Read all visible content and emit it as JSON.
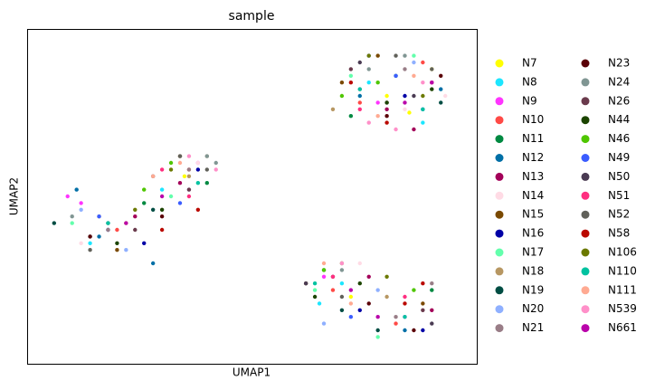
{
  "chart_data": {
    "type": "scatter",
    "title": "sample",
    "x_label": "UMAP1",
    "y_label": "UMAP2",
    "xlim": [
      0,
      100
    ],
    "ylim": [
      0,
      100
    ],
    "grid": false,
    "legend": "outside-right",
    "legend_columns": 2,
    "series": [
      {
        "name": "N7",
        "color": "#ffff00",
        "x": [
          80,
          90,
          22,
          72,
          85,
          35
        ],
        "values": [
          80,
          88,
          42,
          20,
          75,
          56
        ]
      },
      {
        "name": "N8",
        "color": "#1ce6ff",
        "x": [
          76,
          88,
          14,
          70,
          30,
          65
        ],
        "values": [
          84,
          72,
          36,
          24,
          52,
          18
        ]
      },
      {
        "name": "N9",
        "color": "#ff34ff",
        "x": [
          9,
          12,
          78,
          84,
          66,
          38
        ],
        "values": [
          50,
          48,
          78,
          14,
          26,
          60
        ]
      },
      {
        "name": "N10",
        "color": "#ff4a46",
        "x": [
          74,
          88,
          36,
          82,
          20,
          68
        ],
        "values": [
          78,
          90,
          58,
          12,
          40,
          22
        ]
      },
      {
        "name": "N11",
        "color": "#008941",
        "x": [
          82,
          72,
          26,
          90,
          66,
          40
        ],
        "values": [
          86,
          74,
          48,
          22,
          28,
          54
        ]
      },
      {
        "name": "N12",
        "color": "#006fa6",
        "x": [
          11,
          28,
          74,
          92,
          16,
          84
        ],
        "values": [
          52,
          30,
          80,
          82,
          38,
          10
        ]
      },
      {
        "name": "N13",
        "color": "#a30059",
        "x": [
          80,
          86,
          34,
          76,
          90,
          24
        ],
        "values": [
          76,
          70,
          54,
          26,
          16,
          44
        ]
      },
      {
        "name": "N14",
        "color": "#ffdbe5",
        "x": [
          76,
          84,
          38,
          74,
          12,
          93
        ],
        "values": [
          72,
          76,
          60,
          30,
          36,
          80
        ]
      },
      {
        "name": "N15",
        "color": "#7a4900",
        "x": [
          78,
          34,
          88,
          20,
          70,
          62
        ],
        "values": [
          92,
          62,
          18,
          34,
          84,
          24
        ]
      },
      {
        "name": "N16",
        "color": "#0000a6",
        "x": [
          84,
          18,
          74,
          38,
          88,
          26
        ],
        "values": [
          80,
          40,
          16,
          58,
          10,
          36
        ]
      },
      {
        "name": "N17",
        "color": "#63ffac",
        "x": [
          72,
          64,
          10,
          32,
          86,
          78
        ],
        "values": [
          86,
          22,
          42,
          50,
          92,
          8
        ]
      },
      {
        "name": "N18",
        "color": "#b79762",
        "x": [
          90,
          36,
          16,
          80,
          68,
          40
        ],
        "values": [
          84,
          56,
          44,
          20,
          76,
          62
        ]
      },
      {
        "name": "N19",
        "color": "#004d43",
        "x": [
          6,
          14,
          92,
          78,
          28,
          70
        ],
        "values": [
          42,
          38,
          78,
          10,
          46,
          16
        ]
      },
      {
        "name": "N20",
        "color": "#8fb0ff",
        "x": [
          86,
          78,
          22,
          66,
          12,
          36
        ],
        "values": [
          90,
          22,
          34,
          12,
          46,
          52
        ]
      },
      {
        "name": "N21",
        "color": "#997d87",
        "x": [
          74,
          84,
          36,
          82,
          18,
          90
        ],
        "values": [
          82,
          88,
          58,
          14,
          40,
          24
        ]
      },
      {
        "name": "N23",
        "color": "#5a0007",
        "x": [
          80,
          92,
          30,
          76,
          14,
          86
        ],
        "values": [
          74,
          86,
          44,
          18,
          38,
          10
        ]
      },
      {
        "name": "N24",
        "color": "#809693",
        "x": [
          84,
          40,
          42,
          70,
          76,
          10
        ],
        "values": [
          92,
          62,
          60,
          28,
          88,
          44
        ]
      },
      {
        "name": "N26",
        "color": "#6a3a4c",
        "x": [
          72,
          36,
          68,
          88,
          24,
          80
        ],
        "values": [
          88,
          52,
          26,
          16,
          40,
          78
        ]
      },
      {
        "name": "N44",
        "color": "#1b4400",
        "x": [
          80,
          90,
          30,
          74,
          20,
          64
        ],
        "values": [
          78,
          82,
          46,
          24,
          36,
          20
        ]
      },
      {
        "name": "N46",
        "color": "#4fc601",
        "x": [
          78,
          26,
          32,
          66,
          70,
          86
        ],
        "values": [
          84,
          52,
          60,
          28,
          80,
          22
        ]
      },
      {
        "name": "N49",
        "color": "#3b5dff",
        "x": [
          82,
          88,
          72,
          16,
          34,
          76
        ],
        "values": [
          86,
          76,
          14,
          44,
          48,
          92
        ]
      },
      {
        "name": "N50",
        "color": "#4a3b53",
        "x": [
          86,
          74,
          28,
          90,
          62,
          18
        ],
        "values": [
          80,
          90,
          56,
          12,
          24,
          42
        ]
      },
      {
        "name": "N51",
        "color": "#ff2f80",
        "x": [
          74,
          30,
          84,
          68,
          36,
          90
        ],
        "values": [
          76,
          58,
          20,
          26,
          50,
          84
        ]
      },
      {
        "name": "N52",
        "color": "#61615a",
        "x": [
          90,
          82,
          34,
          40,
          70,
          14
        ],
        "values": [
          88,
          92,
          62,
          58,
          20,
          34
        ]
      },
      {
        "name": "N58",
        "color": "#ba0900",
        "x": [
          80,
          84,
          38,
          30,
          88,
          72
        ],
        "values": [
          72,
          18,
          46,
          40,
          24,
          84
        ]
      },
      {
        "name": "N106",
        "color": "#6b7900",
        "x": [
          76,
          70,
          32,
          24,
          80,
          88
        ],
        "values": [
          92,
          30,
          58,
          46,
          26,
          80
        ]
      },
      {
        "name": "N110",
        "color": "#00c2a0",
        "x": [
          88,
          38,
          64,
          74,
          18,
          84
        ],
        "values": [
          76,
          54,
          24,
          82,
          42,
          14
        ]
      },
      {
        "name": "N111",
        "color": "#ffaa92",
        "x": [
          78,
          28,
          66,
          86,
          34,
          72
        ],
        "values": [
          74,
          56,
          30,
          86,
          60,
          18
        ]
      },
      {
        "name": "N539",
        "color": "#ff90c9",
        "x": [
          76,
          82,
          42,
          70,
          88,
          36
        ],
        "values": [
          72,
          70,
          58,
          30,
          84,
          62
        ]
      },
      {
        "name": "N661",
        "color": "#b903aa",
        "x": [
          84,
          78,
          30,
          72,
          90,
          22
        ],
        "values": [
          78,
          14,
          50,
          22,
          84,
          42
        ]
      }
    ]
  }
}
